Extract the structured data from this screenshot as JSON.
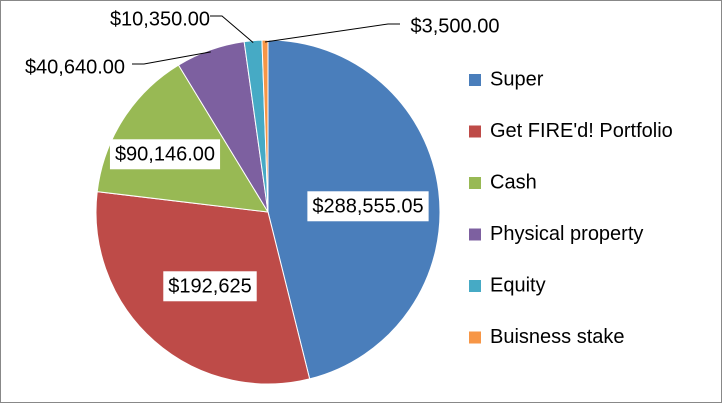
{
  "chart_data": {
    "type": "pie",
    "categories": [
      "Super",
      "Get FIRE'd! Portfolio",
      "Cash",
      "Physical property",
      "Equity",
      "Buisness stake"
    ],
    "values": [
      288555.05,
      192625,
      90146,
      40640,
      10350,
      3500
    ],
    "value_labels": [
      "$288,555.05",
      "$192,625",
      "$90,146.00",
      "$40,640.00",
      "$10,350.00",
      "$3,500.00"
    ],
    "colors": [
      "#4a7ebb",
      "#be4b48",
      "#98b954",
      "#7d60a0",
      "#46aac5",
      "#f79646"
    ],
    "legend": "right"
  }
}
